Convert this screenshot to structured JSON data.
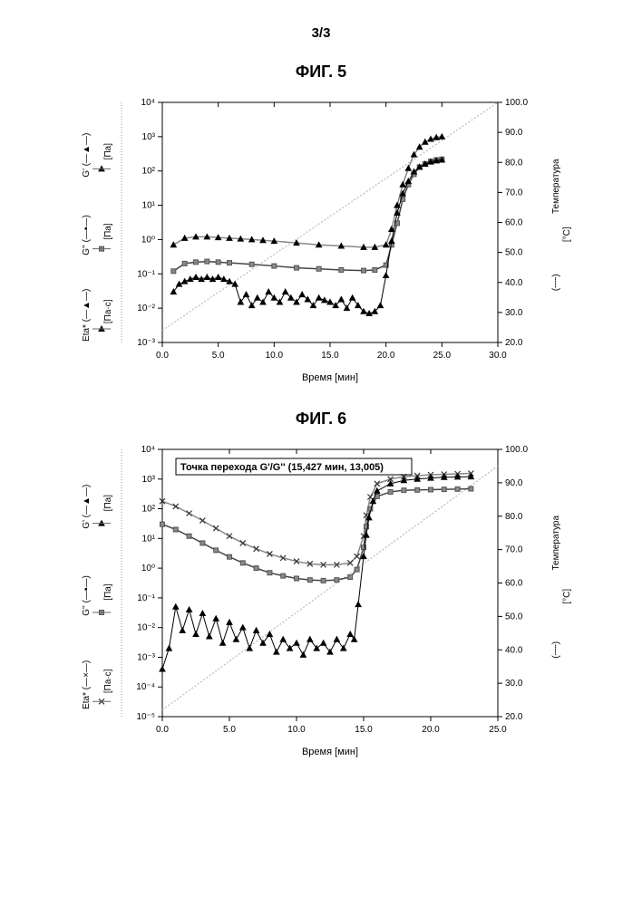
{
  "page": {
    "number": "3/3"
  },
  "fig5": {
    "type": "scatter",
    "title": "ФИГ. 5",
    "xlabel": "Время [мин]",
    "xlim": [
      0,
      30
    ],
    "xtick_step": 5,
    "y1lim_exp": [
      -3,
      4
    ],
    "y1_ticks": [
      "10⁻³",
      "10⁻²",
      "10⁻¹",
      "10⁰",
      "10¹",
      "10²",
      "10³",
      "10⁴"
    ],
    "y2lim": [
      20,
      100
    ],
    "y2_tick_step": 10,
    "y2label": "Температура",
    "y2_unit": "[°C]",
    "legend_left": [
      {
        "name": "Eta*",
        "unit": "[Па·с]",
        "marker": "tri"
      },
      {
        "name": "G''",
        "unit": "[Па]",
        "marker": "sq"
      },
      {
        "name": "G'",
        "unit": "[Па]",
        "marker": "tri"
      }
    ],
    "temp": {
      "x": [
        0,
        30
      ],
      "y": [
        24,
        100
      ],
      "color": "#bbbbbb"
    },
    "eta": {
      "color": "#888888",
      "x": [
        1,
        2,
        3,
        4,
        5,
        6,
        7,
        8,
        9,
        10,
        12,
        14,
        16,
        18,
        19,
        20,
        20.5,
        21,
        21.5,
        22,
        22.5,
        23,
        23.5,
        24,
        24.5,
        25
      ],
      "y": [
        0.7,
        1.1,
        1.2,
        1.2,
        1.15,
        1.1,
        1.05,
        1.0,
        0.95,
        0.9,
        0.8,
        0.7,
        0.65,
        0.6,
        0.6,
        0.7,
        2,
        10,
        40,
        120,
        300,
        500,
        700,
        850,
        950,
        1000
      ]
    },
    "g2": {
      "color": "#444444",
      "x": [
        1,
        2,
        3,
        4,
        5,
        6,
        8,
        10,
        12,
        14,
        16,
        18,
        19,
        20,
        20.5,
        21,
        21.5,
        22,
        22.5,
        23,
        23.5,
        24,
        24.5,
        25
      ],
      "y": [
        0.12,
        0.2,
        0.22,
        0.23,
        0.22,
        0.21,
        0.19,
        0.17,
        0.15,
        0.14,
        0.13,
        0.125,
        0.13,
        0.18,
        0.7,
        3,
        15,
        40,
        80,
        130,
        160,
        190,
        210,
        220
      ]
    },
    "g1": {
      "color": "#000000",
      "x": [
        1,
        1.5,
        2,
        2.5,
        3,
        3.5,
        4,
        4.5,
        5,
        5.5,
        6,
        6.5,
        7,
        7.5,
        8,
        8.5,
        9,
        9.5,
        10,
        10.5,
        11,
        11.5,
        12,
        12.5,
        13,
        13.5,
        14,
        14.5,
        15,
        15.5,
        16,
        16.5,
        17,
        17.5,
        18,
        18.5,
        19,
        19.5,
        20,
        20.5,
        21,
        21.5,
        22,
        22.5,
        23,
        23.5,
        24,
        24.5,
        25
      ],
      "y": [
        0.03,
        0.05,
        0.06,
        0.07,
        0.08,
        0.07,
        0.08,
        0.07,
        0.08,
        0.07,
        0.06,
        0.05,
        0.015,
        0.025,
        0.012,
        0.02,
        0.015,
        0.03,
        0.02,
        0.015,
        0.03,
        0.02,
        0.015,
        0.025,
        0.018,
        0.012,
        0.02,
        0.017,
        0.015,
        0.012,
        0.018,
        0.01,
        0.02,
        0.012,
        0.008,
        0.007,
        0.008,
        0.012,
        0.09,
        0.9,
        6,
        22,
        50,
        95,
        130,
        160,
        185,
        200,
        210
      ]
    }
  },
  "fig6": {
    "type": "scatter",
    "title": "ФИГ. 6",
    "annotation": "Точка перехода G'/G'' (15,427 мин, 13,005)",
    "xlabel": "Время [мин]",
    "xlim": [
      0,
      25
    ],
    "xtick_step": 5,
    "y1lim_exp": [
      -5,
      4
    ],
    "y1_ticks": [
      "10⁻⁵",
      "10⁻⁴",
      "10⁻³",
      "10⁻²",
      "10⁻¹",
      "10⁰",
      "10¹",
      "10²",
      "10³",
      "10⁴"
    ],
    "y2lim": [
      20,
      100
    ],
    "y2_tick_step": 10,
    "y2label": "Температура",
    "y2_unit": "[°C]",
    "legend_left": [
      {
        "name": "Eta*",
        "unit": "[Па·с]",
        "marker": "x"
      },
      {
        "name": "G''",
        "unit": "[Па]",
        "marker": "sq"
      },
      {
        "name": "G'",
        "unit": "[Па]",
        "marker": "tri"
      }
    ],
    "temp": {
      "x": [
        0,
        25
      ],
      "y": [
        22,
        95
      ],
      "color": "#bbbbbb"
    },
    "eta": {
      "color": "#888888",
      "x": [
        0,
        1,
        2,
        3,
        4,
        5,
        6,
        7,
        8,
        9,
        10,
        11,
        12,
        13,
        14,
        14.5,
        15,
        15.2,
        15.5,
        16,
        17,
        18,
        19,
        20,
        21,
        22,
        23
      ],
      "y": [
        180,
        120,
        70,
        40,
        22,
        12,
        7,
        4.5,
        3,
        2.2,
        1.7,
        1.4,
        1.3,
        1.3,
        1.5,
        2.5,
        12,
        60,
        250,
        700,
        1000,
        1200,
        1300,
        1400,
        1450,
        1500,
        1550
      ]
    },
    "g2": {
      "color": "#444444",
      "x": [
        0,
        1,
        2,
        3,
        4,
        5,
        6,
        7,
        8,
        9,
        10,
        11,
        12,
        13,
        14,
        14.5,
        15,
        15.2,
        15.5,
        16,
        17,
        18,
        19,
        20,
        21,
        22,
        23
      ],
      "y": [
        30,
        20,
        12,
        7,
        4,
        2.4,
        1.5,
        1.0,
        0.7,
        0.55,
        0.45,
        0.4,
        0.38,
        0.4,
        0.5,
        0.9,
        5,
        25,
        100,
        260,
        370,
        420,
        430,
        440,
        450,
        460,
        470
      ]
    },
    "g1": {
      "color": "#000000",
      "x": [
        0,
        0.5,
        1,
        1.5,
        2,
        2.5,
        3,
        3.5,
        4,
        4.5,
        5,
        5.5,
        6,
        6.5,
        7,
        7.5,
        8,
        8.5,
        9,
        9.5,
        10,
        10.5,
        11,
        11.5,
        12,
        12.5,
        13,
        13.5,
        14,
        14.3,
        14.6,
        15,
        15.2,
        15.4,
        15.7,
        16,
        17,
        18,
        19,
        20,
        21,
        22,
        23
      ],
      "y": [
        0.0004,
        0.002,
        0.05,
        0.008,
        0.04,
        0.006,
        0.03,
        0.005,
        0.02,
        0.003,
        0.015,
        0.004,
        0.01,
        0.002,
        0.008,
        0.003,
        0.006,
        0.0015,
        0.004,
        0.002,
        0.003,
        0.0012,
        0.004,
        0.002,
        0.003,
        0.0015,
        0.004,
        0.002,
        0.006,
        0.004,
        0.06,
        2.5,
        13,
        50,
        180,
        400,
        700,
        900,
        1000,
        1080,
        1150,
        1180,
        1200
      ]
    }
  }
}
